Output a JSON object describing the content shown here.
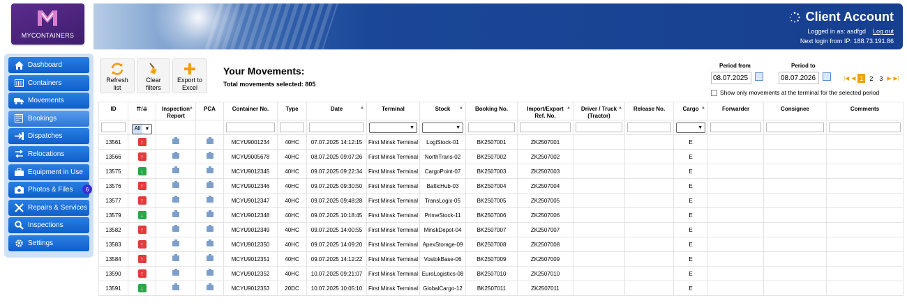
{
  "brand": {
    "name": "MYCONTAINERS"
  },
  "header": {
    "title": "Client Account",
    "logged_in_label": "Logged in as: asdfgd",
    "logout_label": "Log out",
    "next_login": "Next login from IP: 188.73.191.86"
  },
  "sidebar": {
    "items": [
      {
        "label": "Dashboard",
        "icon": "home-icon"
      },
      {
        "label": "Containers",
        "icon": "container-icon"
      },
      {
        "label": "Movements",
        "icon": "truck-icon"
      },
      {
        "label": "Bookings",
        "icon": "booking-icon"
      },
      {
        "label": "Dispatches",
        "icon": "dispatch-icon"
      },
      {
        "label": "Relocations",
        "icon": "relocation-icon"
      },
      {
        "label": "Equipment in Use",
        "icon": "equipment-icon"
      },
      {
        "label": "Photos & Files",
        "icon": "camera-icon",
        "badge": "6"
      },
      {
        "label": "Repairs & Services",
        "icon": "tools-icon"
      },
      {
        "label": "Inspections",
        "icon": "search-icon"
      },
      {
        "label": "Settings",
        "icon": "gear-icon"
      }
    ],
    "active_index": 3
  },
  "toolbar": {
    "refresh_line1": "Refresh",
    "refresh_line2": "list",
    "clear_line1": "Clear",
    "clear_line2": "filters",
    "export_line1": "Export to",
    "export_line2": "Excel"
  },
  "main": {
    "title": "Your Movements:",
    "subtitle": "Total movements selected: 805"
  },
  "period": {
    "from_label": "Period from",
    "from_value": "08.07.2025",
    "to_label": "Period to",
    "to_value": "08.07.2026",
    "show_only_label": "Show only movements at the terminal for the selected period"
  },
  "pager": {
    "pages": [
      "1",
      "2",
      "3"
    ],
    "current": "1"
  },
  "table": {
    "headers": {
      "id": "ID",
      "dir": "⇈/⇊",
      "insp_l1": "Inspection",
      "insp_l2": "Report",
      "pca": "PCA",
      "container": "Container No.",
      "type": "Type",
      "date": "Date",
      "terminal": "Terminal",
      "stock": "Stock",
      "booking": "Booking No.",
      "ref_l1": "Import/Export",
      "ref_l2": "Ref. No.",
      "driver_l1": "Driver / Truck",
      "driver_l2": "(Tractor)",
      "release": "Release No.",
      "cargo": "Cargo",
      "forwarder": "Forwarder",
      "consignee": "Consignee",
      "comments": "Comments"
    },
    "filter_all": "All",
    "rows": [
      {
        "id": "13561",
        "dir": "in",
        "container": "MCYU9001234",
        "type": "40HC",
        "date": "07.07.2025 14:12:15",
        "terminal": "First Minsk Terminal",
        "stock": "LogiStock-01",
        "booking": "BK2507001",
        "ref": "ZK2507001",
        "cargo": "E"
      },
      {
        "id": "13566",
        "dir": "in",
        "container": "MCYU9005678",
        "type": "40HC",
        "date": "08.07.2025 09:07:26",
        "terminal": "First Minsk Terminal",
        "stock": "NorthTrans-02",
        "booking": "BK2507002",
        "ref": "ZK2507002",
        "cargo": "E"
      },
      {
        "id": "13575",
        "dir": "out",
        "container": "MCYU9012345",
        "type": "40HC",
        "date": "09.07.2025 09:22:34",
        "terminal": "First Minsk Terminal",
        "stock": "CargoPoint-07",
        "booking": "BK2507003",
        "ref": "ZK2507003",
        "cargo": "E"
      },
      {
        "id": "13576",
        "dir": "in",
        "container": "MCYU9012346",
        "type": "40HC",
        "date": "09.07.2025 09:30:50",
        "terminal": "First Minsk Terminal",
        "stock": "BalticHub-03",
        "booking": "BK2507004",
        "ref": "ZK2507004",
        "cargo": "E"
      },
      {
        "id": "13577",
        "dir": "in",
        "container": "MCYU9012347",
        "type": "40HC",
        "date": "09.07.2025 09:48:28",
        "terminal": "First Minsk Terminal",
        "stock": "TransLogix-05",
        "booking": "BK2507005",
        "ref": "ZK2507005",
        "cargo": "E"
      },
      {
        "id": "13579",
        "dir": "out",
        "container": "MCYU9012348",
        "type": "40HC",
        "date": "09.07.2025 10:18:45",
        "terminal": "First Minsk Terminal",
        "stock": "PrimeStock-11",
        "booking": "BK2507006",
        "ref": "ZK2507006",
        "cargo": "E"
      },
      {
        "id": "13582",
        "dir": "in",
        "container": "MCYU9012349",
        "type": "40HC",
        "date": "09.07.2025 14:00:55",
        "terminal": "First Minsk Terminal",
        "stock": "MinskDepot-04",
        "booking": "BK2507007",
        "ref": "ZK2507007",
        "cargo": "E"
      },
      {
        "id": "13583",
        "dir": "in",
        "container": "MCYU9012350",
        "type": "40HC",
        "date": "09.07.2025 14:09:20",
        "terminal": "First Minsk Terminal",
        "stock": "ApexStorage-09",
        "booking": "BK2507008",
        "ref": "ZK2507008",
        "cargo": "E"
      },
      {
        "id": "13584",
        "dir": "in",
        "container": "MCYU9012351",
        "type": "40HC",
        "date": "09.07.2025 14:12:22",
        "terminal": "First Minsk Terminal",
        "stock": "VostokBase-06",
        "booking": "BK2507009",
        "ref": "ZK2507009",
        "cargo": "E"
      },
      {
        "id": "13590",
        "dir": "in",
        "container": "MCYU9012352",
        "type": "40HC",
        "date": "10.07.2025 09:21:07",
        "terminal": "First Minsk Terminal",
        "stock": "EuroLogistics-08",
        "booking": "BK2507010",
        "ref": "ZK2507010",
        "cargo": "E"
      },
      {
        "id": "13591",
        "dir": "out",
        "container": "MCYU9012353",
        "type": "20DC",
        "date": "10.07.2025 10:05:10",
        "terminal": "First Minsk Terminal",
        "stock": "GlobalCargo-12",
        "booking": "BK2507011",
        "ref": "ZK2507011",
        "cargo": "E"
      }
    ]
  },
  "colors": {
    "nav_blue": "#0f5fcb",
    "banner_blue": "#173f8f",
    "arrow_in": "#e33b3b",
    "arrow_out": "#2aa745",
    "pager_active": "#f2a20a"
  }
}
